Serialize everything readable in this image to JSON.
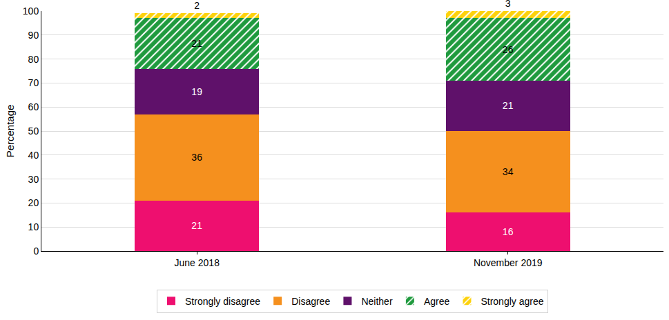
{
  "chart_data": {
    "type": "bar",
    "stacked": true,
    "data_labels": true,
    "grid": true,
    "legend": "bottom",
    "categories": [
      "June 2018",
      "November 2019"
    ],
    "y_label": "Percentage",
    "ylim": [
      0,
      100
    ],
    "yticks": [
      0,
      10,
      20,
      30,
      40,
      50,
      60,
      70,
      80,
      90,
      100
    ],
    "series": [
      {
        "name": "Strongly disagree",
        "color": "#ee0f6f",
        "values": [
          21,
          16
        ]
      },
      {
        "name": "Disagree",
        "color": "#f5901e",
        "values": [
          36,
          34
        ]
      },
      {
        "name": "Neither",
        "color": "#5f116a",
        "values": [
          19,
          21
        ]
      },
      {
        "name": "Agree",
        "color": "#1f9a3e",
        "marker": "hatched",
        "values": [
          21,
          26
        ]
      },
      {
        "name": "Strongly agree",
        "color": "#fdd20c",
        "marker": "hatched",
        "values": [
          2,
          3
        ]
      }
    ]
  }
}
